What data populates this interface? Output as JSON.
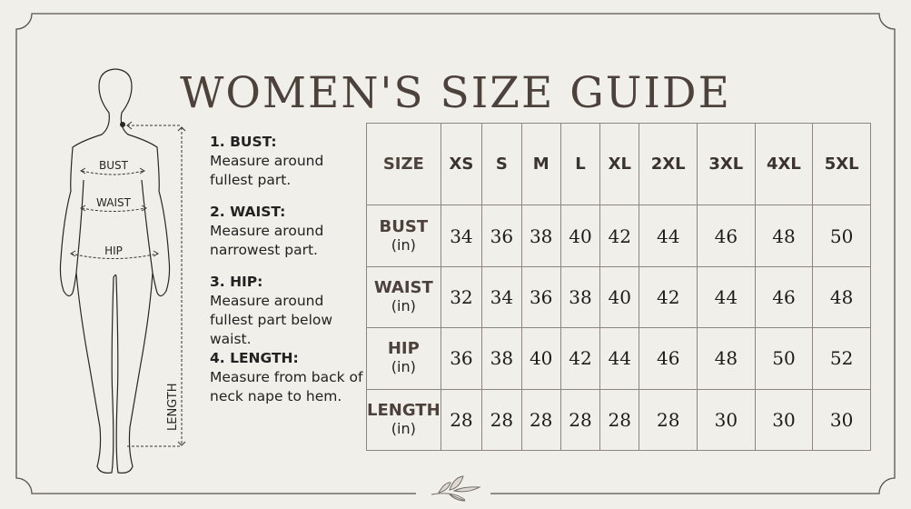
{
  "title": "WOMEN'S SIZE GUIDE",
  "figure_labels": {
    "bust": "BUST",
    "waist": "WAIST",
    "hip": "HIP",
    "length": "LENGTH"
  },
  "instructions": [
    {
      "heading": "1. BUST:",
      "text": "Measure around fullest part."
    },
    {
      "heading": "2. WAIST:",
      "text": "Measure around narrowest part."
    },
    {
      "heading": "3. HIP:",
      "text": "Measure around fullest part below waist."
    },
    {
      "heading": "4. LENGTH:",
      "text": "Measure from back of neck nape to hem."
    }
  ],
  "table": {
    "header": [
      "SIZE",
      "XS",
      "S",
      "M",
      "L",
      "XL",
      "2XL",
      "3XL",
      "4XL",
      "5XL"
    ],
    "rows": [
      {
        "label": "BUST",
        "unit": "(in)",
        "values": [
          "34",
          "36",
          "38",
          "40",
          "42",
          "44",
          "46",
          "48",
          "50"
        ]
      },
      {
        "label": "WAIST",
        "unit": "(in)",
        "values": [
          "32",
          "34",
          "36",
          "38",
          "40",
          "42",
          "44",
          "46",
          "48"
        ]
      },
      {
        "label": "HIP",
        "unit": "(in)",
        "values": [
          "36",
          "38",
          "40",
          "42",
          "44",
          "46",
          "48",
          "50",
          "52"
        ]
      },
      {
        "label": "LENGTH",
        "unit": "(in)",
        "values": [
          "28",
          "28",
          "28",
          "28",
          "28",
          "28",
          "30",
          "30",
          "30"
        ]
      }
    ]
  },
  "colors": {
    "background": "#f0efea",
    "title": "#4d423b",
    "border": "#8c8580"
  },
  "icons": {
    "footer_ornament": "leaf-sprig-icon"
  }
}
